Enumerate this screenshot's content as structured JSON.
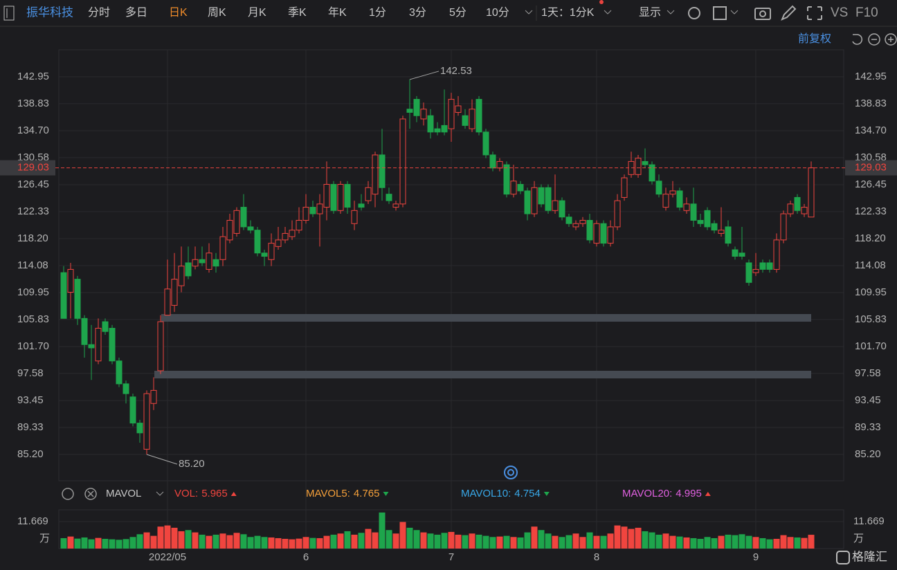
{
  "toolbar": {
    "stock": "振华科技",
    "tabs": [
      "分时",
      "多日",
      "日K",
      "周K",
      "月K",
      "季K",
      "年K",
      "1分",
      "3分",
      "5分",
      "10分"
    ],
    "active_tab": 2,
    "period": "1天：1分K",
    "display": "显示",
    "vs": "VS",
    "f10": "F10",
    "adjust": "前复权"
  },
  "indicator": {
    "name": "MAVOL",
    "items": [
      {
        "label": "VOL:",
        "value": 5.965,
        "color": "#f0453f",
        "trend": "up"
      },
      {
        "label": "MAVOL5:",
        "value": 4.765,
        "color": "#f5a03a",
        "trend": "down"
      },
      {
        "label": "MAVOL10:",
        "value": 4.754,
        "color": "#38a8e8",
        "trend": "down"
      },
      {
        "label": "MAVOL20:",
        "value": 4.995,
        "color": "#e060e0",
        "trend": "up"
      }
    ]
  },
  "chart_data": {
    "type": "candlestick",
    "up_color": "#f0453f",
    "down_color": "#1ea54c",
    "ylim": [
      81.18,
      147.07
    ],
    "yticks": [
      142.95,
      138.83,
      {
        "value": 134.7,
        "label": "134.70"
      },
      130.58,
      126.45,
      122.33,
      {
        "value": 118.2,
        "label": "118.20"
      },
      114.08,
      109.95,
      105.83,
      {
        "value": 101.7,
        "label": "101.70"
      },
      97.58,
      93.45,
      89.33,
      {
        "value": 85.2,
        "label": "85.20"
      }
    ],
    "annotations": [
      {
        "value": 142.53,
        "label": "142.53"
      },
      {
        "value": 85.2,
        "label": "85.20"
      }
    ],
    "categories": [
      null,
      null,
      null,
      null,
      null,
      null,
      null,
      null,
      null,
      null,
      null,
      null,
      null,
      null,
      null,
      "2022/05",
      null,
      null,
      null,
      null,
      null,
      null,
      null,
      null,
      null,
      null,
      null,
      null,
      null,
      null,
      null,
      null,
      null,
      null,
      null,
      "6",
      null,
      null,
      null,
      null,
      null,
      null,
      null,
      null,
      null,
      null,
      null,
      null,
      null,
      null,
      null,
      null,
      null,
      null,
      null,
      null,
      "7",
      null,
      null,
      null,
      null,
      null,
      null,
      null,
      null,
      null,
      null,
      null,
      null,
      null,
      null,
      null,
      null,
      null,
      null,
      null,
      null,
      "8",
      null,
      null,
      null,
      null,
      null,
      null,
      null,
      null,
      null,
      null,
      null,
      null,
      null,
      null,
      null,
      null,
      null,
      null,
      null,
      null,
      null,
      null,
      "9",
      null,
      null,
      null,
      null,
      null,
      null,
      null,
      null
    ],
    "open": [
      113,
      110,
      112,
      106,
      102,
      99.5,
      105.5,
      104.5,
      99.5,
      96,
      94,
      90,
      86,
      93,
      98,
      106.5,
      108,
      111,
      114.5,
      114,
      115,
      113.5,
      115,
      115,
      118,
      119,
      123,
      120,
      119.5,
      116,
      115,
      117,
      118,
      118.5,
      119.5,
      121,
      123,
      122,
      123,
      126.5,
      122.5,
      126.5,
      120.5,
      123.5,
      124,
      125,
      131,
      125,
      123,
      123.5,
      138,
      139.5,
      136.5,
      137,
      135,
      135.5,
      135,
      137.5,
      137,
      135,
      139.5,
      134.5,
      131,
      129,
      129.5,
      125,
      126.5,
      125.5,
      122,
      126,
      126,
      122.5,
      124,
      121.5,
      120,
      120.5,
      121,
      117.5,
      120.5,
      117.5,
      120,
      124.5,
      128,
      128,
      130,
      129.5,
      127,
      123,
      125,
      125.5,
      122.5,
      123.5,
      121,
      122.5,
      120.5,
      119,
      120,
      116.5,
      116,
      114.5,
      113,
      114.5,
      114.5,
      113.5,
      118,
      122,
      124.5,
      122,
      121.5
    ],
    "high": [
      114,
      114.5,
      112.5,
      106.5,
      105,
      106,
      106,
      105,
      100,
      96.5,
      94.5,
      90.5,
      95,
      97,
      106.5,
      115,
      116,
      117,
      117,
      117,
      117,
      117.5,
      116,
      120,
      122,
      123,
      125,
      121,
      120,
      116.5,
      119,
      120,
      120,
      121,
      123,
      125,
      124,
      125,
      130,
      127,
      127,
      127,
      124,
      125,
      127,
      131.5,
      135,
      126,
      124,
      137,
      142.53,
      140,
      139,
      138,
      136,
      141,
      140.5,
      140,
      138,
      139.5,
      140,
      135,
      131.5,
      130.5,
      130,
      129.5,
      127,
      126,
      127,
      126.5,
      126.5,
      128,
      124.5,
      122,
      121,
      121.5,
      122,
      121,
      121,
      121,
      125,
      128,
      131.5,
      131,
      132,
      130,
      128,
      126,
      127,
      126,
      124.5,
      126,
      122,
      123,
      121,
      123,
      121,
      117,
      120,
      115,
      116,
      115,
      115,
      119,
      122.5,
      124,
      125,
      123.5,
      130
    ],
    "low": [
      106,
      106,
      105,
      100,
      96.6,
      99,
      103.5,
      99,
      95.5,
      93,
      89.5,
      87,
      85.2,
      92,
      97.5,
      106.5,
      107,
      110,
      112,
      113.5,
      114,
      113,
      113,
      114,
      117.5,
      118.5,
      119.5,
      119,
      115.5,
      114,
      114,
      116.5,
      117.5,
      118,
      119,
      120.5,
      121.5,
      117,
      121,
      122,
      122,
      122,
      119.5,
      122.5,
      123.5,
      123,
      124,
      123.5,
      122.5,
      123,
      135,
      136,
      135.5,
      133.5,
      134,
      134,
      133,
      137,
      135,
      134.5,
      134,
      130.5,
      128.5,
      128.5,
      124.5,
      124.5,
      125,
      121,
      121.5,
      123,
      122,
      122,
      121,
      120,
      119.5,
      120,
      117.5,
      117,
      117,
      117,
      119.5,
      124,
      127.5,
      127.5,
      129,
      126.5,
      124.5,
      122.5,
      124.5,
      122.5,
      122,
      120,
      120,
      119.5,
      119,
      118.5,
      117,
      115,
      115,
      111,
      112.5,
      113,
      113,
      113,
      117.5,
      121.5,
      122,
      121.5,
      121.5
    ],
    "close": [
      106,
      113.5,
      106,
      102,
      101.5,
      104.5,
      104,
      99.5,
      96,
      94.5,
      90,
      88.5,
      94.5,
      95,
      105.5,
      110.5,
      112,
      114,
      112.5,
      115,
      114.5,
      116,
      114,
      118.5,
      121,
      122.5,
      120,
      119.5,
      116,
      115.5,
      117.5,
      118,
      119,
      119.5,
      121,
      123,
      122,
      123.5,
      126.5,
      122.5,
      126.5,
      123,
      122.5,
      123,
      126,
      131,
      126,
      124,
      123.5,
      136.5,
      137.5,
      137,
      138,
      134.5,
      134.5,
      134.5,
      139.5,
      138.5,
      135.5,
      138,
      134.5,
      131,
      129,
      130,
      125,
      127,
      125.5,
      122,
      126,
      123.5,
      122.5,
      124,
      121.5,
      120.5,
      120.5,
      121,
      118,
      120.5,
      117.5,
      120,
      124,
      127.5,
      130,
      130.5,
      129.5,
      127,
      125,
      125,
      125.5,
      123,
      123.5,
      121,
      120.5,
      120,
      119.5,
      119.5,
      117.5,
      115.5,
      115.5,
      111.5,
      113.5,
      113.5,
      113.5,
      118,
      122,
      123.5,
      122.5,
      123,
      129.03
    ],
    "volume": {
      "ylim": [
        0,
        16.76
      ],
      "yticks": [
        11.669
      ],
      "unit": "万",
      "values": [
        4.5,
        5.2,
        4.3,
        4.8,
        4.0,
        4.6,
        4.2,
        4.0,
        3.8,
        4.1,
        5.0,
        6.2,
        7.0,
        5.5,
        9.5,
        10.0,
        9.0,
        7.5,
        8.0,
        7.0,
        6.0,
        5.5,
        6.0,
        6.5,
        5.8,
        6.8,
        6.2,
        5.0,
        5.5,
        5.0,
        4.8,
        4.5,
        4.2,
        4.0,
        4.3,
        5.0,
        4.6,
        4.5,
        5.5,
        6.0,
        6.5,
        7.5,
        6.0,
        6.8,
        8.5,
        7.0,
        15.6,
        8.0,
        6.5,
        11.5,
        9.0,
        8.0,
        7.0,
        6.5,
        6.0,
        6.8,
        7.2,
        6.0,
        5.8,
        6.5,
        6.0,
        5.5,
        5.0,
        5.2,
        5.5,
        5.0,
        4.8,
        7.0,
        9.5,
        8.0,
        6.5,
        5.5,
        5.0,
        5.8,
        6.5,
        5.0,
        7.0,
        5.5,
        5.5,
        6.5,
        10.0,
        9.5,
        8.5,
        9.0,
        7.5,
        7.0,
        6.0,
        6.5,
        5.5,
        5.2,
        4.8,
        4.5,
        4.2,
        5.0,
        4.5,
        5.5,
        6.0,
        5.8,
        6.2,
        5.5,
        5.0,
        4.5,
        4.0,
        4.2,
        5.8,
        5.0,
        4.8,
        4.6,
        5.965
      ]
    }
  },
  "logo": "格隆汇"
}
